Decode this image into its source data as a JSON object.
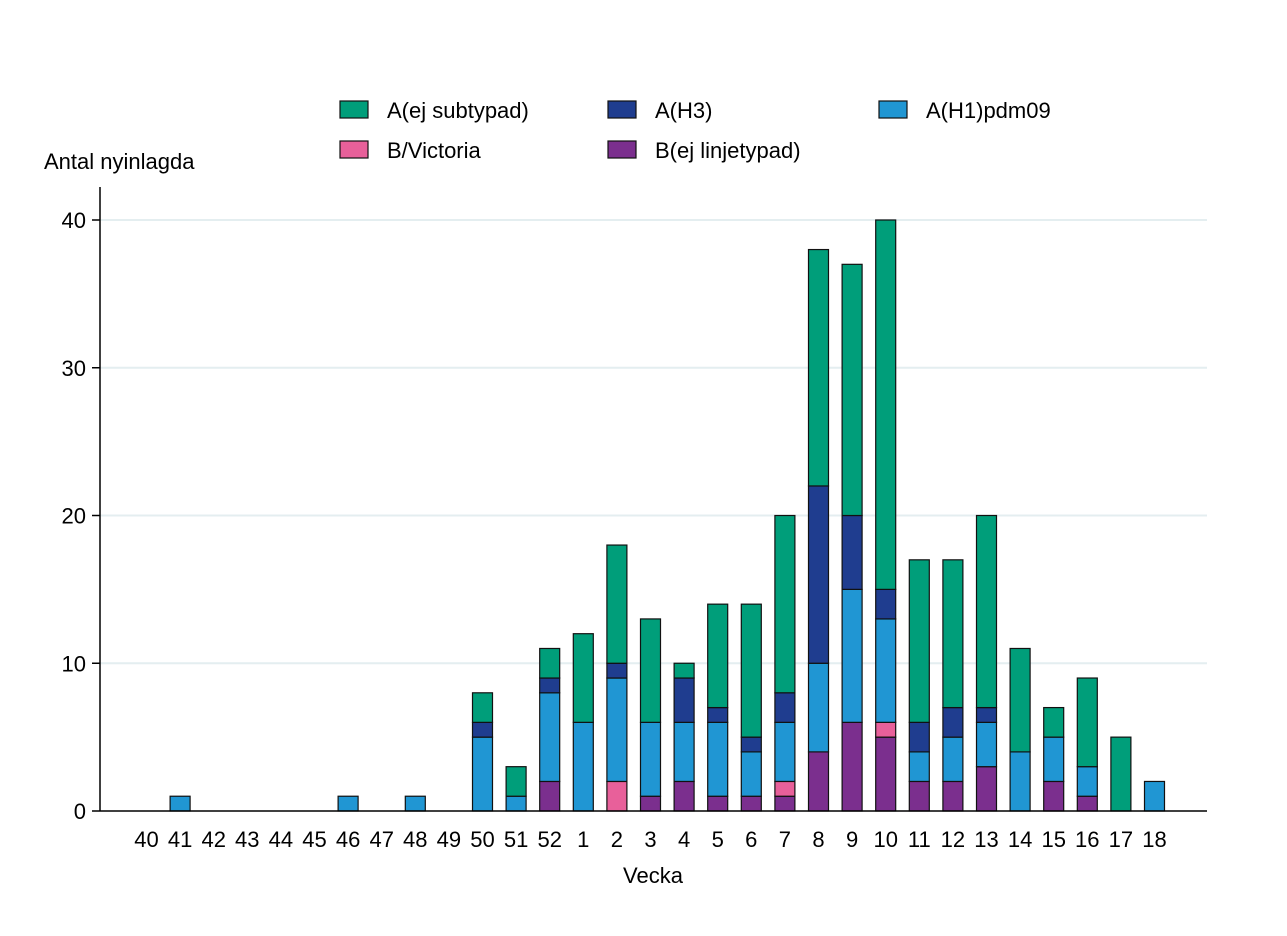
{
  "chart_data": {
    "type": "bar",
    "stacked": true,
    "title": "",
    "ylabel": "Antal nyinlagda",
    "xlabel": "Vecka",
    "ylim": [
      0,
      40
    ],
    "yticks": [
      0,
      10,
      20,
      30,
      40
    ],
    "grid": true,
    "legend_position": "top",
    "categories": [
      "40",
      "41",
      "42",
      "43",
      "44",
      "45",
      "46",
      "47",
      "48",
      "49",
      "50",
      "51",
      "52",
      "1",
      "2",
      "3",
      "4",
      "5",
      "6",
      "7",
      "8",
      "9",
      "10",
      "11",
      "12",
      "13",
      "14",
      "15",
      "16",
      "17",
      "18"
    ],
    "series": [
      {
        "name": "B(ej linjetypad)",
        "color": "#7b2f8e",
        "values": [
          0,
          0,
          0,
          0,
          0,
          0,
          0,
          0,
          0,
          0,
          0,
          0,
          2,
          0,
          0,
          1,
          2,
          1,
          1,
          1,
          4,
          6,
          5,
          2,
          2,
          3,
          0,
          2,
          1,
          0,
          0
        ]
      },
      {
        "name": "B/Victoria",
        "color": "#e8609a",
        "values": [
          0,
          0,
          0,
          0,
          0,
          0,
          0,
          0,
          0,
          0,
          0,
          0,
          0,
          0,
          2,
          0,
          0,
          0,
          0,
          1,
          0,
          0,
          1,
          0,
          0,
          0,
          0,
          0,
          0,
          0,
          0
        ]
      },
      {
        "name": "A(H1)pdm09",
        "color": "#2096d3",
        "values": [
          0,
          1,
          0,
          0,
          0,
          0,
          1,
          0,
          1,
          0,
          5,
          1,
          6,
          6,
          7,
          5,
          4,
          5,
          3,
          4,
          6,
          9,
          7,
          2,
          3,
          3,
          4,
          3,
          2,
          0,
          2
        ]
      },
      {
        "name": "A(H3)",
        "color": "#1f3d8f",
        "values": [
          0,
          0,
          0,
          0,
          0,
          0,
          0,
          0,
          0,
          0,
          1,
          0,
          1,
          0,
          1,
          0,
          3,
          1,
          1,
          2,
          12,
          5,
          2,
          2,
          2,
          1,
          0,
          0,
          0,
          0,
          0
        ]
      },
      {
        "name": "A(ej subtypad)",
        "color": "#009e7a",
        "values": [
          0,
          0,
          0,
          0,
          0,
          0,
          0,
          0,
          0,
          0,
          2,
          2,
          2,
          6,
          8,
          7,
          1,
          7,
          9,
          12,
          16,
          17,
          25,
          11,
          10,
          13,
          7,
          2,
          6,
          5,
          0
        ]
      }
    ],
    "legend_order": [
      "A(ej subtypad)",
      "A(H3)",
      "A(H1)pdm09",
      "B/Victoria",
      "B(ej linjetypad)"
    ]
  }
}
